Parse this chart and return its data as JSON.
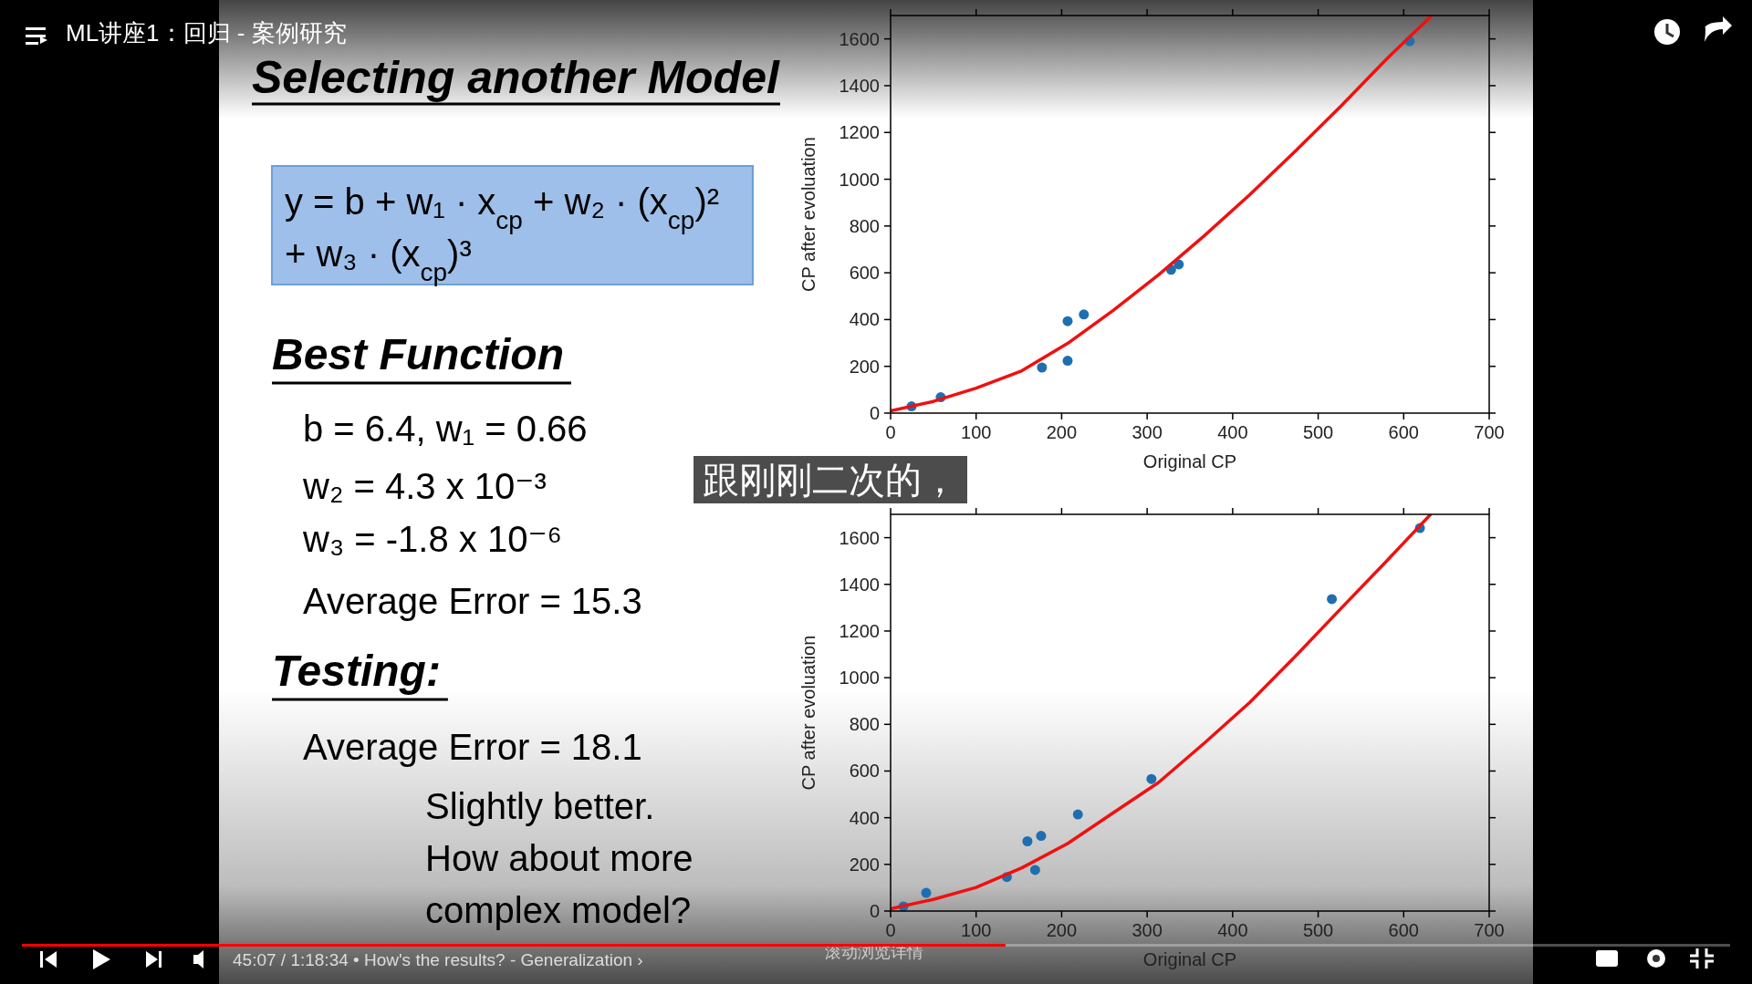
{
  "chart_data": [
    {
      "type": "scatter",
      "title": "Selecting another Model",
      "xlabel": "Original CP",
      "ylabel": "CP after evoluation",
      "xlim": [
        0,
        700
      ],
      "xticks": [
        0,
        100,
        200,
        300,
        400,
        500,
        600,
        700
      ],
      "ylim": [
        0,
        1700
      ],
      "yticks": [
        0,
        200,
        400,
        600,
        800,
        1000,
        1200,
        1400,
        1600
      ],
      "series": [
        {
          "type": "scatter",
          "marker": "circle",
          "color": "#1f6fb0",
          "x": [
            24.5,
            58.6,
            177,
            207,
            207,
            226,
            328,
            337,
            607
          ],
          "values": [
            29,
            68,
            195,
            224,
            393,
            422,
            613,
            636,
            1590
          ]
        },
        {
          "type": "line",
          "marker": "none",
          "color": "#f01010",
          "x": [
            0,
            50,
            100,
            153.5,
            207,
            260,
            313,
            367,
            420,
            473,
            527,
            580,
            631
          ],
          "values": [
            10,
            50,
            107,
            181,
            298,
            438,
            590,
            759,
            934,
            1119,
            1314,
            1514,
            1693
          ]
        }
      ],
      "annotations": [
        "ML讲座1：回归 - 案例研究",
        "y = b + w₁ · x$_{cp}$ + w₂ · (x$_{cp}$)²",
        "+ w₃ · (x$_{cp}$)³",
        "Best Function",
        "b = 6.4, w₁ = 0.66",
        "w₂ = 4.3 x 10⁻³",
        "w₃ = -1.8 x 10⁻⁶",
        "Average Error = 15.3",
        "Testing:",
        "Average Error = 18.1",
        "Slightly better.",
        "How about more",
        "complex model?",
        "跟刚刚二次的，",
        "45:07 / 1:18:34 • How's the results? - Generalization ›",
        "滚动浏览详情"
      ]
    },
    {
      "type": "scatter",
      "xlabel": "Original CP",
      "ylabel": "CP after evoluation",
      "xlim": [
        0,
        700
      ],
      "xticks": [
        0,
        100,
        200,
        300,
        400,
        500,
        600,
        700
      ],
      "ylim": [
        0,
        1700
      ],
      "yticks": [
        0,
        200,
        400,
        600,
        800,
        1000,
        1200,
        1400,
        1600
      ],
      "series": [
        {
          "type": "scatter",
          "marker": "circle",
          "color": "#1f6fb0",
          "x": [
            15,
            41.6,
            136,
            160,
            169,
            176,
            219,
            305,
            516,
            619
          ],
          "values": [
            20,
            78,
            146,
            299,
            176,
            322,
            414,
            566,
            1337,
            1641
          ]
        },
        {
          "type": "line",
          "marker": "none",
          "color": "#f01010",
          "x": [
            0,
            50,
            100,
            153.5,
            207,
            260,
            313,
            367,
            420,
            473,
            527,
            580,
            631
          ],
          "values": [
            10,
            50,
            101,
            185,
            289,
            420,
            550,
            720,
            894,
            1090,
            1298,
            1500,
            1698
          ]
        }
      ]
    }
  ]
}
